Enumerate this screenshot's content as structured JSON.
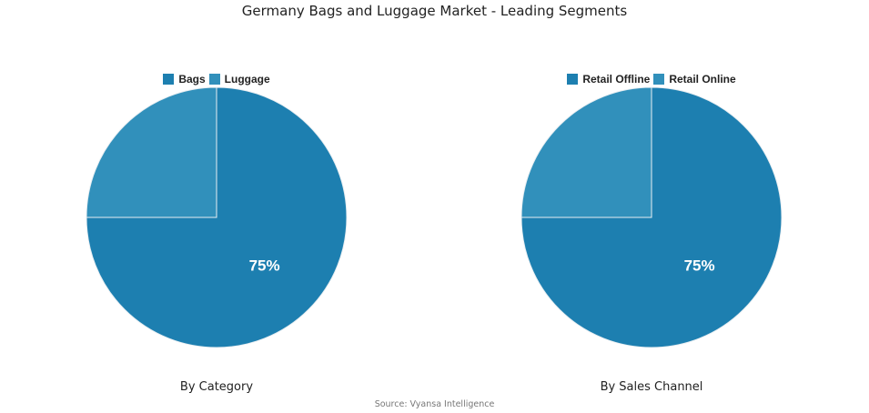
{
  "title": "Germany Bags and Luggage Market - Leading Segments",
  "source": "Source: Vyansa Intelligence",
  "colors": {
    "primary": "#1d7fb0",
    "secondary": "#3190bb",
    "divider": "#e8eef2"
  },
  "chart_data": [
    {
      "type": "pie",
      "caption": "By Category",
      "legend_position": "top",
      "slices": [
        {
          "label": "Bags",
          "value": 75,
          "display": "75%",
          "color": "#1d7fb0"
        },
        {
          "label": "Luggage",
          "value": 25,
          "display": "",
          "color": "#3190bb"
        }
      ]
    },
    {
      "type": "pie",
      "caption": "By Sales Channel",
      "legend_position": "top",
      "slices": [
        {
          "label": "Retail Offline",
          "value": 75,
          "display": "75%",
          "color": "#1d7fb0"
        },
        {
          "label": "Retail Online",
          "value": 25,
          "display": "",
          "color": "#3190bb"
        }
      ]
    }
  ]
}
